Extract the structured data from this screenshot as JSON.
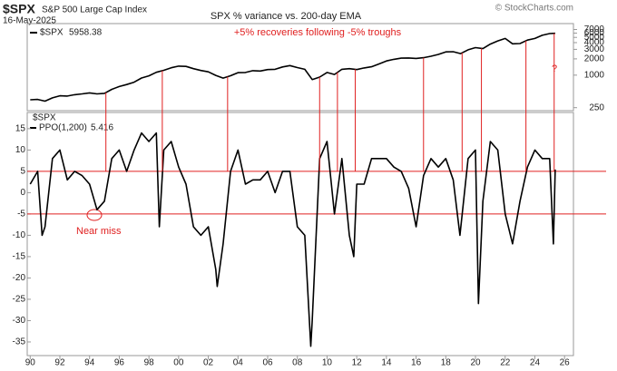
{
  "header": {
    "symbol": "$SPX",
    "name": "S&P 500 Large Cap Index",
    "date": "16-May-2025",
    "credit": "© StockCharts.com"
  },
  "chart_data": [
    {
      "type": "line",
      "log_scale": true,
      "xlim": [
        1989.8,
        2026.6
      ],
      "ylim": [
        220,
        9000
      ],
      "yticks": [
        250,
        1000,
        2000,
        3000,
        4000,
        5000,
        6000,
        7000
      ],
      "series": [
        {
          "name": "$SPX",
          "color": "#000000",
          "x": [
            1990,
            1990.5,
            1991,
            1991.5,
            1992,
            1992.5,
            1993,
            1993.5,
            1994,
            1994.5,
            1995,
            1995.5,
            1996,
            1996.5,
            1997,
            1997.5,
            1998,
            1998.5,
            1999,
            1999.5,
            2000,
            2000.5,
            2001,
            2001.5,
            2002,
            2002.5,
            2003,
            2003.5,
            2004,
            2004.5,
            2005,
            2005.5,
            2006,
            2006.5,
            2007,
            2007.5,
            2008,
            2008.5,
            2009,
            2009.5,
            2010,
            2010.5,
            2011,
            2011.5,
            2012,
            2012.5,
            2013,
            2013.5,
            2014,
            2014.5,
            2015,
            2015.5,
            2016,
            2016.5,
            2017,
            2017.5,
            2018,
            2018.5,
            2019,
            2019.5,
            2020,
            2020.5,
            2021,
            2021.5,
            2022,
            2022.5,
            2023,
            2023.5,
            2024,
            2024.5,
            2025,
            2025.37
          ],
          "values": [
            350,
            355,
            330,
            380,
            415,
            410,
            435,
            450,
            470,
            450,
            460,
            545,
            615,
            670,
            740,
            885,
            970,
            1130,
            1230,
            1370,
            1470,
            1450,
            1320,
            1220,
            1150,
            990,
            880,
            975,
            1110,
            1120,
            1210,
            1190,
            1270,
            1280,
            1420,
            1500,
            1380,
            1280,
            830,
            920,
            1120,
            1030,
            1280,
            1320,
            1270,
            1360,
            1430,
            1610,
            1830,
            1960,
            2060,
            2080,
            2040,
            2100,
            2240,
            2420,
            2690,
            2720,
            2500,
            2940,
            3230,
            3100,
            3750,
            4300,
            4770,
            3800,
            3840,
            4450,
            4770,
            5460,
            5880,
            5958.38
          ]
        }
      ]
    },
    {
      "type": "line",
      "title": "SPX % variance vs. 200-day EMA",
      "subtitle": "+5% recoveries following -5% troughs",
      "symbol": "$SPX",
      "xlim": [
        1989.8,
        2026.6
      ],
      "ylim": [
        -38.2,
        18.8
      ],
      "yticks": [
        15,
        10,
        5,
        0,
        -5,
        -10,
        -15,
        -20,
        -25,
        -30,
        -35
      ],
      "xticks": [
        {
          "value": 1990,
          "label": "90"
        },
        {
          "value": 1992,
          "label": "92"
        },
        {
          "value": 1994,
          "label": "94"
        },
        {
          "value": 1996,
          "label": "96"
        },
        {
          "value": 1998,
          "label": "98"
        },
        {
          "value": 2000,
          "label": "00"
        },
        {
          "value": 2002,
          "label": "02"
        },
        {
          "value": 2004,
          "label": "04"
        },
        {
          "value": 2006,
          "label": "06"
        },
        {
          "value": 2008,
          "label": "08"
        },
        {
          "value": 2010,
          "label": "10"
        },
        {
          "value": 2012,
          "label": "12"
        },
        {
          "value": 2014,
          "label": "14"
        },
        {
          "value": 2016,
          "label": "16"
        },
        {
          "value": 2018,
          "label": "18"
        },
        {
          "value": 2020,
          "label": "20"
        },
        {
          "value": 2022,
          "label": "22"
        },
        {
          "value": 2024,
          "label": "24"
        },
        {
          "value": 2026,
          "label": "26"
        }
      ],
      "reference_lines": [
        5,
        -5
      ],
      "reference_color": "#e02020",
      "recovery_x": [
        1995.1,
        1998.9,
        2003.3,
        2009.5,
        2010.7,
        2011.9,
        2016.5,
        2019.1,
        2020.4,
        2023.4,
        2025.3
      ],
      "annotations": [
        "Near miss",
        "?"
      ],
      "series": [
        {
          "name": "PPO(1,200)",
          "color": "#000000",
          "x": [
            1990,
            1990.5,
            1990.8,
            1991,
            1991.5,
            1992,
            1992.5,
            1993,
            1993.5,
            1994,
            1994.5,
            1995,
            1995.5,
            1996,
            1996.5,
            1997,
            1997.5,
            1998,
            1998.5,
            1998.7,
            1999,
            1999.5,
            2000,
            2000.5,
            2001,
            2001.5,
            2002,
            2002.5,
            2002.6,
            2003,
            2003.5,
            2004,
            2004.5,
            2005,
            2005.5,
            2006,
            2006.5,
            2007,
            2007.5,
            2008,
            2008.5,
            2008.9,
            2009,
            2009.5,
            2010,
            2010.5,
            2011,
            2011.5,
            2011.8,
            2012,
            2012.5,
            2013,
            2013.5,
            2014,
            2014.5,
            2015,
            2015.5,
            2016,
            2016.5,
            2017,
            2017.5,
            2018,
            2018.5,
            2018.95,
            2019.5,
            2020,
            2020.2,
            2020.5,
            2021,
            2021.5,
            2022,
            2022.5,
            2023,
            2023.5,
            2024,
            2024.5,
            2025,
            2025.25,
            2025.37
          ],
          "values": [
            2,
            5,
            -10,
            -8,
            8,
            10,
            3,
            5,
            4,
            2,
            -4,
            -2,
            8,
            10,
            5,
            10,
            14,
            12,
            14,
            -8,
            10,
            12,
            6,
            2,
            -8,
            -10,
            -8,
            -18,
            -22,
            -12,
            5,
            10,
            2,
            3,
            3,
            5,
            0,
            5,
            5,
            -8,
            -10,
            -36,
            -30,
            8,
            12,
            -5,
            8,
            -10,
            -15,
            2,
            2,
            8,
            8,
            8,
            6,
            5,
            1,
            -8,
            4,
            8,
            6,
            8,
            3,
            -10,
            8,
            10,
            -26,
            -2,
            12,
            10,
            -5,
            -12,
            -2,
            6,
            10,
            8,
            8,
            -12,
            5.416
          ]
        }
      ]
    }
  ]
}
